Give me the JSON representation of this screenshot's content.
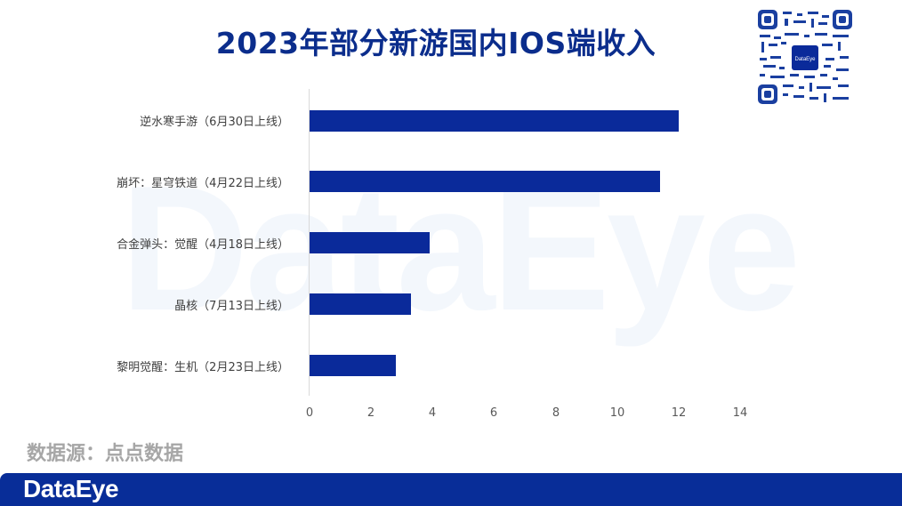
{
  "header": {
    "title": "2023年部分新游国内IOS端收入",
    "qr_center_label": "DataEye"
  },
  "watermark": "DataEye",
  "footer": {
    "source": "数据源：点点数据",
    "logo": "DataEye"
  },
  "colors": {
    "bar": "#0a2a9a",
    "title": "#0b2d8c",
    "footer_bg": "#082d98",
    "source_text": "#a6a6a6"
  },
  "chart_data": {
    "type": "bar",
    "orientation": "horizontal",
    "title": "2023年部分新游国内IOS端收入",
    "xlabel": "",
    "ylabel": "",
    "categories": [
      "逆水寒手游（6月30日上线）",
      "崩坏：星穹铁道（4月22日上线）",
      "合金弹头：觉醒（4月18日上线）",
      "晶核（7月13日上线）",
      "黎明觉醒：生机（2月23日上线）"
    ],
    "values": [
      12.0,
      11.4,
      3.9,
      3.3,
      2.8
    ],
    "xlim": [
      0,
      14
    ],
    "x_ticks": [
      "0",
      "2",
      "4",
      "6",
      "8",
      "10",
      "12",
      "14"
    ],
    "grid": false,
    "legend": "none",
    "source": "数据源：点点数据"
  }
}
